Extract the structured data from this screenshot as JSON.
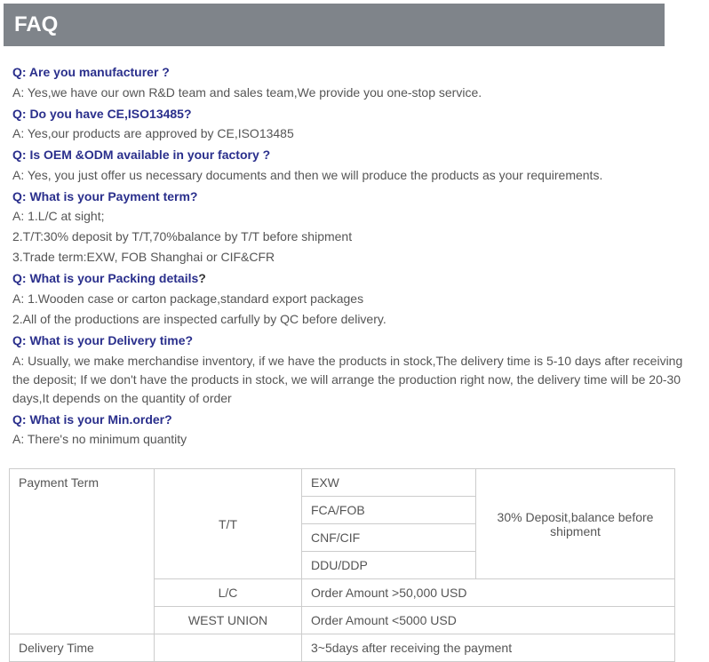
{
  "header": "FAQ",
  "faq": [
    {
      "q": "Q: Are you manufacturer ?",
      "a": [
        "A: Yes,we have our own R&D team and sales team,We provide you one-stop service."
      ]
    },
    {
      "q": "Q: Do you have CE,ISO13485?",
      "a": [
        "A: Yes,our products are approved by CE,ISO13485"
      ]
    },
    {
      "q": "Q: Is OEM &ODM available in your factory ?",
      "a": [
        "A: Yes, you just offer us necessary documents and then we will produce the products as your requirements."
      ]
    },
    {
      "q": "Q: What is your Payment term?",
      "a": [
        "A: 1.L/C at sight;",
        "2.T/T:30% deposit by T/T,70%balance by T/T before shipment",
        "3.Trade term:EXW, FOB Shanghai or CIF&CFR"
      ]
    },
    {
      "q_prefix": "Q: What is your Packing details",
      "q_suffix": "?",
      "a": [
        "A: 1.Wooden case or carton package,standard export packages",
        "2.All of the productions are inspected carfully by QC before delivery."
      ]
    },
    {
      "q": "Q: What is your Delivery time?",
      "a": [
        "A: Usually, we make merchandise inventory, if we have the products in stock,The delivery time is 5-10 days after receiving the deposit; If we don't have the products in stock, we will arrange the production right now, the delivery time will be 20-30 days,It depends on the quantity of order"
      ]
    },
    {
      "q": "Q: What is your Min.order?",
      "a": [
        "A: There's no minimum quantity"
      ]
    }
  ],
  "table": {
    "r1": {
      "c1": "Payment Term",
      "c2": "T/T",
      "c3": "EXW",
      "c4": "30% Deposit,balance before shipment"
    },
    "r2": {
      "c3": "FCA/FOB"
    },
    "r3": {
      "c3": "CNF/CIF"
    },
    "r4": {
      "c3": "DDU/DDP"
    },
    "r5": {
      "c2": "L/C",
      "c3": "Order Amount >50,000 USD"
    },
    "r6": {
      "c2": "WEST UNION",
      "c3": "Order Amount <5000 USD"
    },
    "r7": {
      "c1": "Delivery Time",
      "c3": "3~5days after receiving the payment"
    }
  }
}
